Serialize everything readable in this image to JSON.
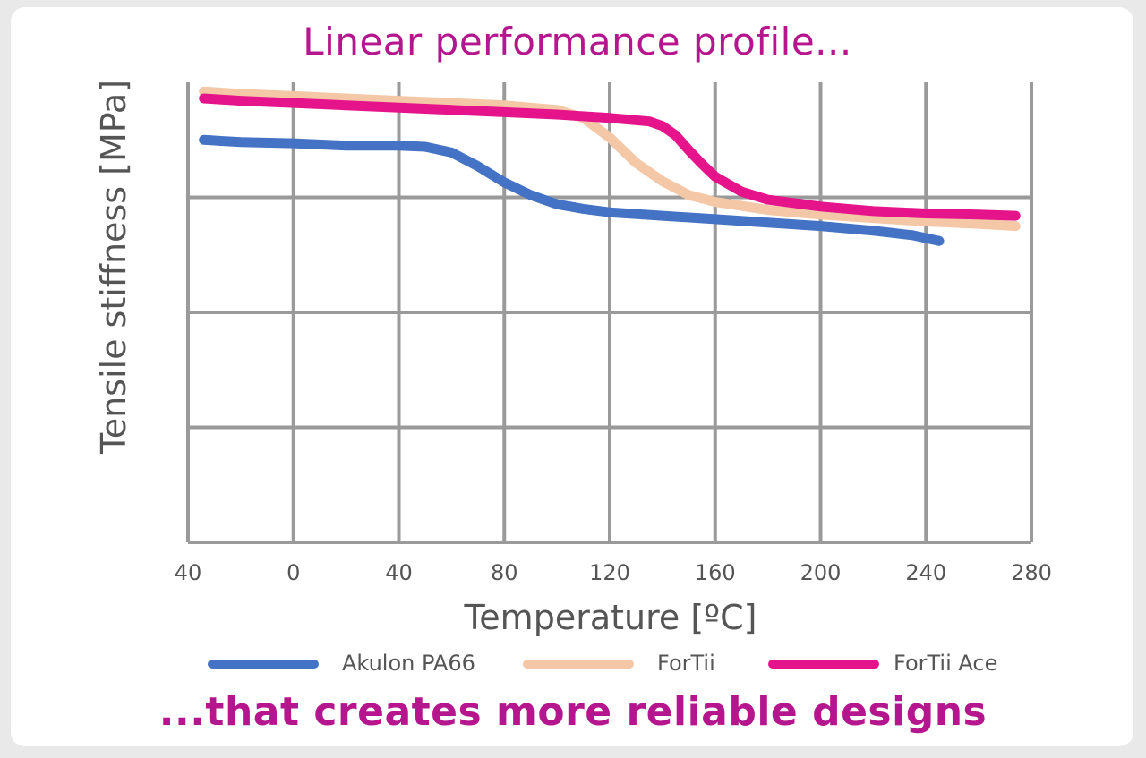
{
  "colors": {
    "accent": "#b5168d",
    "grid": "#9a9a9a",
    "axis_text": "#555555"
  },
  "chart_data": {
    "type": "line",
    "title": "Linear performance profile...",
    "subtitle": "...that creates more reliable designs",
    "xlabel": "Temperature [ºC]",
    "ylabel": "Tensile stiffness [MPa]",
    "x_tick_labels": [
      "40",
      "0",
      "40",
      "80",
      "120",
      "160",
      "200",
      "240",
      "280"
    ],
    "xlim": [
      -40,
      280
    ],
    "ylim": [
      0,
      4
    ],
    "grid": true,
    "legend_position": "bottom",
    "series": [
      {
        "name": "Akulon PA66",
        "color": "#4472c4",
        "points": [
          [
            -34,
            3.5
          ],
          [
            -20,
            3.48
          ],
          [
            0,
            3.47
          ],
          [
            20,
            3.45
          ],
          [
            40,
            3.45
          ],
          [
            50,
            3.44
          ],
          [
            60,
            3.39
          ],
          [
            70,
            3.27
          ],
          [
            80,
            3.13
          ],
          [
            90,
            3.02
          ],
          [
            100,
            2.94
          ],
          [
            110,
            2.9
          ],
          [
            120,
            2.87
          ],
          [
            140,
            2.84
          ],
          [
            160,
            2.81
          ],
          [
            180,
            2.78
          ],
          [
            200,
            2.75
          ],
          [
            220,
            2.71
          ],
          [
            235,
            2.67
          ],
          [
            245,
            2.62
          ]
        ]
      },
      {
        "name": "ForTii",
        "color": "#f4c8a7",
        "points": [
          [
            -34,
            3.92
          ],
          [
            -20,
            3.9
          ],
          [
            0,
            3.88
          ],
          [
            20,
            3.86
          ],
          [
            40,
            3.84
          ],
          [
            60,
            3.82
          ],
          [
            80,
            3.8
          ],
          [
            100,
            3.76
          ],
          [
            110,
            3.69
          ],
          [
            120,
            3.52
          ],
          [
            130,
            3.3
          ],
          [
            140,
            3.14
          ],
          [
            150,
            3.02
          ],
          [
            160,
            2.96
          ],
          [
            180,
            2.89
          ],
          [
            200,
            2.85
          ],
          [
            220,
            2.82
          ],
          [
            240,
            2.79
          ],
          [
            260,
            2.77
          ],
          [
            274,
            2.75
          ]
        ]
      },
      {
        "name": "ForTii Ace",
        "color": "#e5148a",
        "points": [
          [
            -34,
            3.86
          ],
          [
            -20,
            3.84
          ],
          [
            0,
            3.82
          ],
          [
            20,
            3.8
          ],
          [
            40,
            3.78
          ],
          [
            60,
            3.76
          ],
          [
            80,
            3.74
          ],
          [
            100,
            3.72
          ],
          [
            120,
            3.69
          ],
          [
            135,
            3.66
          ],
          [
            140,
            3.62
          ],
          [
            145,
            3.54
          ],
          [
            150,
            3.41
          ],
          [
            155,
            3.29
          ],
          [
            160,
            3.18
          ],
          [
            170,
            3.05
          ],
          [
            180,
            2.98
          ],
          [
            200,
            2.92
          ],
          [
            220,
            2.88
          ],
          [
            240,
            2.86
          ],
          [
            260,
            2.85
          ],
          [
            274,
            2.84
          ]
        ]
      }
    ]
  }
}
